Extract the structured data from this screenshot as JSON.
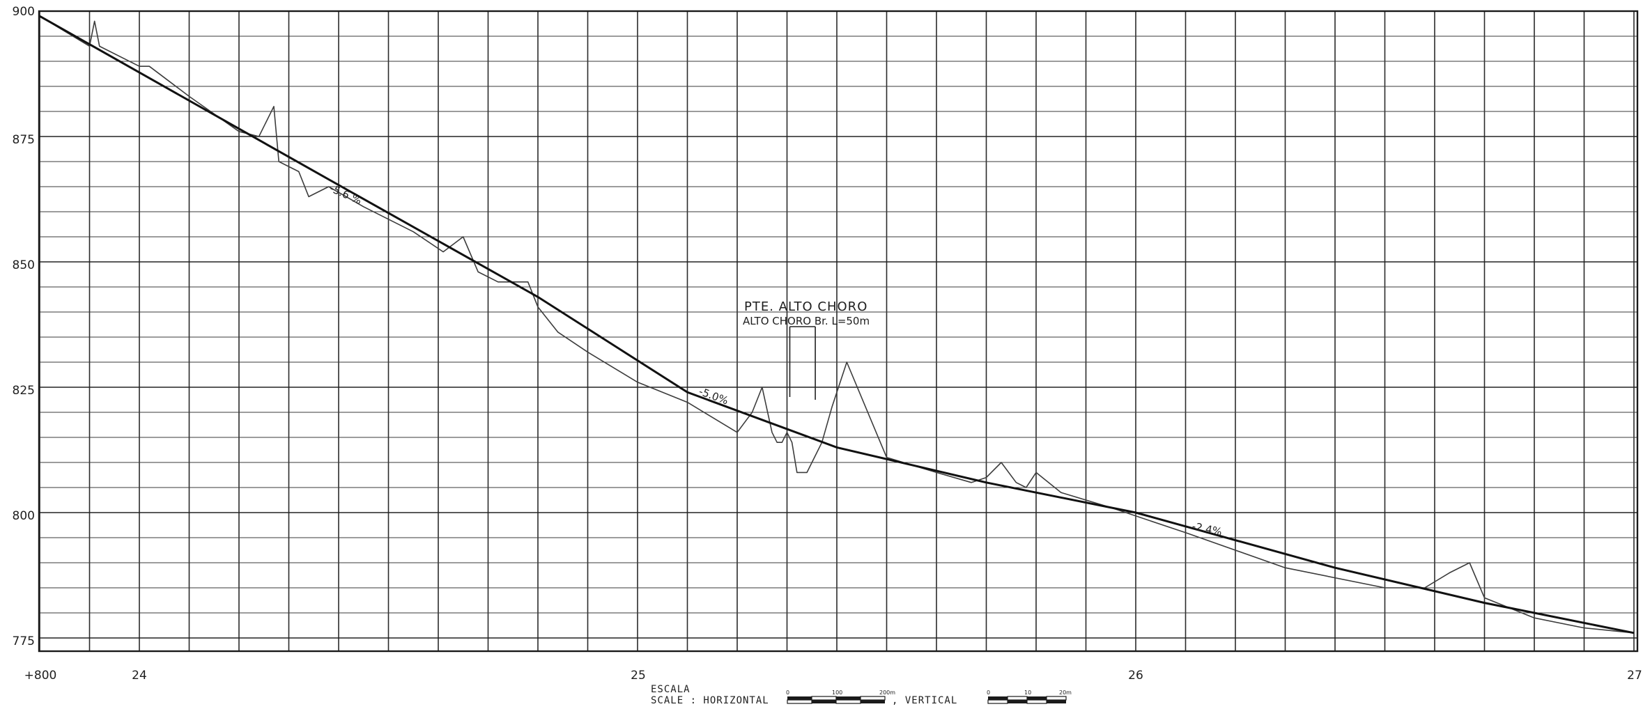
{
  "chart_data": {
    "type": "line",
    "y_tick_labels": [
      "900",
      "875",
      "850",
      "825",
      "800",
      "775"
    ],
    "x_tick_labels": [
      "+800",
      "24",
      "25",
      "26",
      "27"
    ],
    "ylim": [
      772,
      900
    ],
    "xlim": [
      23.8,
      27.0
    ],
    "grid": true,
    "x_major_interval": 0.1,
    "y_major_interval": 5,
    "series": [
      {
        "role": "ground-profile",
        "x": [
          23.8,
          23.9,
          23.91,
          23.92,
          24.0,
          24.02,
          24.1,
          24.2,
          24.24,
          24.27,
          24.28,
          24.32,
          24.34,
          24.38,
          24.45,
          24.55,
          24.61,
          24.65,
          24.68,
          24.72,
          24.78,
          24.8,
          24.84,
          24.9,
          25.0,
          25.1,
          25.2,
          25.23,
          25.25,
          25.27,
          25.28,
          25.29,
          25.3,
          25.31,
          25.32,
          25.34,
          25.37,
          25.39,
          25.42,
          25.5,
          25.6,
          25.67,
          25.7,
          25.73,
          25.76,
          25.78,
          25.8,
          25.85,
          25.95,
          26.1,
          26.3,
          26.5,
          26.58,
          26.63,
          26.67,
          26.7,
          26.8,
          26.9,
          27.0
        ],
        "y": [
          899,
          893,
          898,
          893,
          889,
          889,
          883,
          876,
          875,
          881,
          870,
          868,
          863,
          865,
          861,
          856,
          852,
          855,
          848,
          846,
          846,
          841,
          836,
          832,
          826,
          822,
          816,
          820,
          825,
          816,
          814,
          814,
          816,
          814,
          808,
          808,
          814,
          821,
          830,
          811,
          808,
          806,
          807,
          810,
          806,
          805,
          808,
          804,
          801,
          796,
          789,
          785,
          785,
          788,
          790,
          783,
          779,
          777,
          776
        ]
      },
      {
        "role": "grade-line",
        "x": [
          23.8,
          24.37,
          24.8,
          25.1,
          25.4,
          25.7,
          26.0,
          26.4,
          26.7,
          27.0
        ],
        "y": [
          899,
          867,
          843,
          824,
          813,
          806,
          800,
          789,
          782,
          776
        ]
      }
    ],
    "slope_labels": [
      "-5.6 %",
      "-5.0%",
      "-2.4%"
    ],
    "annotations": {
      "bridge_title": "PTE. ALTO CHORO",
      "bridge_subtitle": "ALTO CHORO Br. L=50m",
      "bridge_x_start": 25.3,
      "bridge_x_end": 25.34
    }
  },
  "scale_block": {
    "title": "ESCALA",
    "caption": "SCALE : HORIZONTAL",
    "vertical_label": ", VERTICAL",
    "horizontal_ticks": [
      "0",
      "100",
      "200m"
    ],
    "vertical_ticks": [
      "0",
      "10",
      "20m"
    ]
  }
}
